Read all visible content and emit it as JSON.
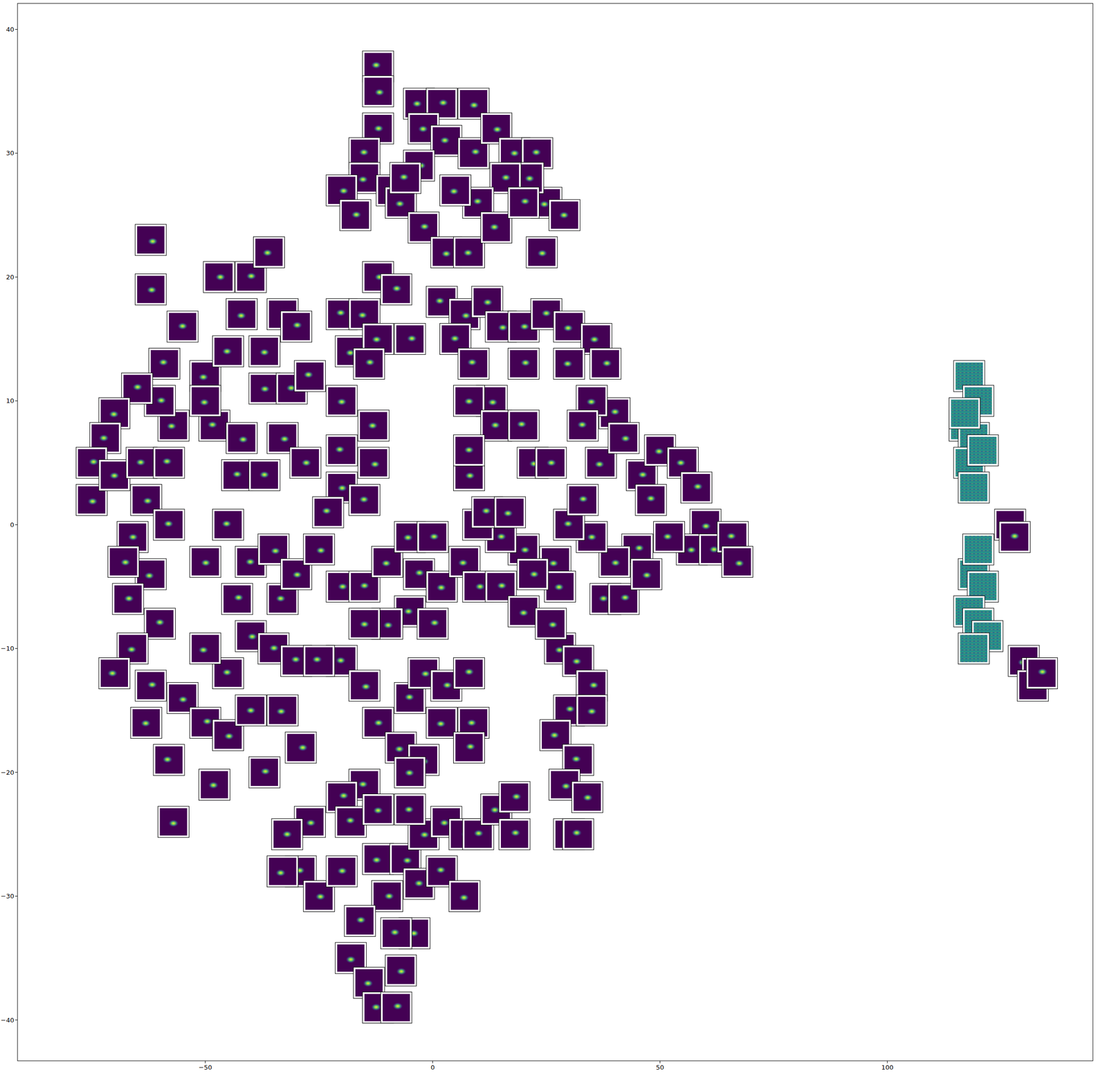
{
  "chart_data": {
    "type": "scatter",
    "marker": "thumbnail",
    "grid": false,
    "xlim": [
      -91.3,
      145.2
    ],
    "ylim": [
      -43.3,
      42.1
    ],
    "xticks": [
      -50,
      0,
      50,
      100
    ],
    "yticks": [
      -40,
      -30,
      -20,
      -10,
      0,
      10,
      20,
      30,
      40
    ],
    "series": [
      {
        "color": "#440154",
        "x": [
          -12,
          -12,
          -12,
          -15,
          -15,
          -20,
          -17,
          -9,
          -7,
          -3,
          2,
          9,
          -2,
          3,
          9,
          14,
          18,
          23,
          25,
          21,
          16,
          10,
          5,
          -3,
          -2,
          3,
          8,
          14,
          20,
          24,
          29,
          -6,
          -62,
          -62,
          -55,
          -59,
          -50,
          -47,
          -40,
          -42,
          -36,
          -33,
          -30,
          -37,
          -45,
          -48,
          -42,
          -37,
          -31,
          -27,
          -33,
          -28,
          -43,
          -50,
          -57,
          -60,
          -65,
          -70,
          -72,
          -75,
          -75,
          -70,
          -64,
          -58,
          -63,
          -66,
          -58,
          -62,
          -68,
          -67,
          -60,
          -66,
          -70,
          -62,
          -55,
          -63,
          -58,
          -50,
          -45,
          -40,
          -45,
          -50,
          -40,
          -35,
          -30,
          -33,
          -29,
          -37,
          -57,
          -48,
          -33,
          -43,
          -50,
          -40,
          -45,
          -35,
          -30,
          -37,
          -20,
          -15,
          -12,
          -8,
          -18,
          -12,
          -5,
          -14,
          -20,
          -13,
          -20,
          -13,
          -20,
          -15,
          -23,
          -25,
          -20,
          -15,
          -10,
          -5,
          0,
          -3,
          2,
          -5,
          0,
          -10,
          -15,
          -20,
          -25,
          -15,
          -12,
          -5,
          -7,
          -2,
          3,
          8,
          2,
          9,
          8,
          -2,
          -5,
          -15,
          -20,
          -27,
          -32,
          -29,
          -33,
          -25,
          -20,
          -18,
          -12,
          -10,
          -16,
          -18,
          -14,
          -12,
          -8,
          -7,
          -4,
          -8,
          -6,
          -2,
          -3,
          2,
          3,
          7,
          10,
          7,
          14,
          18,
          18,
          -12,
          -5,
          2,
          7,
          12,
          5,
          9,
          15,
          20,
          25,
          30,
          36,
          38,
          40,
          35,
          30,
          20,
          13,
          8,
          14,
          20,
          22,
          26,
          33,
          37,
          42,
          46,
          48,
          50,
          55,
          58,
          60,
          57,
          52,
          45,
          40,
          35,
          30,
          27,
          20,
          15,
          10,
          7,
          10,
          15,
          20,
          28,
          38,
          42,
          47,
          62,
          66,
          67,
          8,
          8,
          12,
          17,
          22,
          33,
          28,
          32,
          35,
          30,
          35,
          27,
          32,
          29,
          34,
          30,
          32,
          26,
          127,
          128,
          130,
          133,
          132,
          134
        ],
        "values": [
          37,
          35,
          32,
          30,
          28,
          27,
          25,
          27,
          26,
          34,
          34,
          34,
          32,
          31,
          30,
          32,
          30,
          30,
          26,
          28,
          28,
          26,
          27,
          29,
          24,
          22,
          22,
          24,
          26,
          22,
          25,
          28,
          23,
          19,
          16,
          13,
          12,
          20,
          20,
          17,
          22,
          17,
          16,
          14,
          14,
          8,
          7,
          11,
          11,
          12,
          7,
          5,
          4,
          10,
          8,
          10,
          11,
          9,
          7,
          5,
          2,
          4,
          5,
          5,
          2,
          -1,
          0,
          -4,
          -3,
          -6,
          -8,
          -10,
          -12,
          -13,
          -14,
          -16,
          -19,
          -16,
          -17,
          -15,
          -12,
          -10,
          -9,
          -10,
          -11,
          -15,
          -18,
          -20,
          -24,
          -21,
          -6,
          -6,
          -3,
          -3,
          0,
          -2,
          -4,
          4,
          17,
          17,
          20,
          19,
          14,
          15,
          15,
          13,
          10,
          8,
          6,
          5,
          3,
          2,
          1,
          -2,
          -5,
          -5,
          -3,
          -1,
          -1,
          -4,
          -5,
          -7,
          -8,
          -8,
          -8,
          -11,
          -11,
          -13,
          -16,
          -14,
          -18,
          -12,
          -13,
          -12,
          -16,
          -16,
          -18,
          -19,
          -20,
          -21,
          -22,
          -24,
          -25,
          -28,
          -28,
          -30,
          -28,
          -24,
          -27,
          -30,
          -32,
          -35,
          -37,
          -39,
          -39,
          -36,
          -33,
          -33,
          -27,
          -25,
          -29,
          -28,
          -24,
          -25,
          -25,
          -30,
          -23,
          -22,
          -25,
          -23,
          -23,
          18,
          17,
          18,
          15,
          13,
          16,
          16,
          17,
          16,
          15,
          13,
          9,
          10,
          13,
          13,
          10,
          10,
          8,
          8,
          5,
          5,
          8,
          5,
          7,
          4,
          2,
          6,
          5,
          3,
          0,
          -2,
          -1,
          -2,
          -3,
          -1,
          0,
          -3,
          -2,
          -1,
          0,
          -3,
          -5,
          -5,
          -7,
          -5,
          -6,
          -6,
          -4,
          -2,
          -1,
          -3,
          4,
          6,
          1,
          1,
          -4,
          2,
          -10,
          -11,
          -13,
          -15,
          -15,
          -17,
          -19,
          -21,
          -22,
          -25,
          -25,
          -8,
          0,
          -1,
          -11,
          -12,
          -13,
          -12
        ]
      },
      {
        "color": "#21918c",
        "x": [
          118,
          120,
          117,
          119,
          118,
          121,
          119,
          117,
          119,
          121,
          118,
          120,
          122,
          119,
          120
        ],
        "values": [
          12,
          10,
          8,
          7,
          5,
          6,
          3,
          9,
          -4,
          -5,
          -7,
          -8,
          -9,
          -10,
          -2
        ]
      }
    ]
  }
}
